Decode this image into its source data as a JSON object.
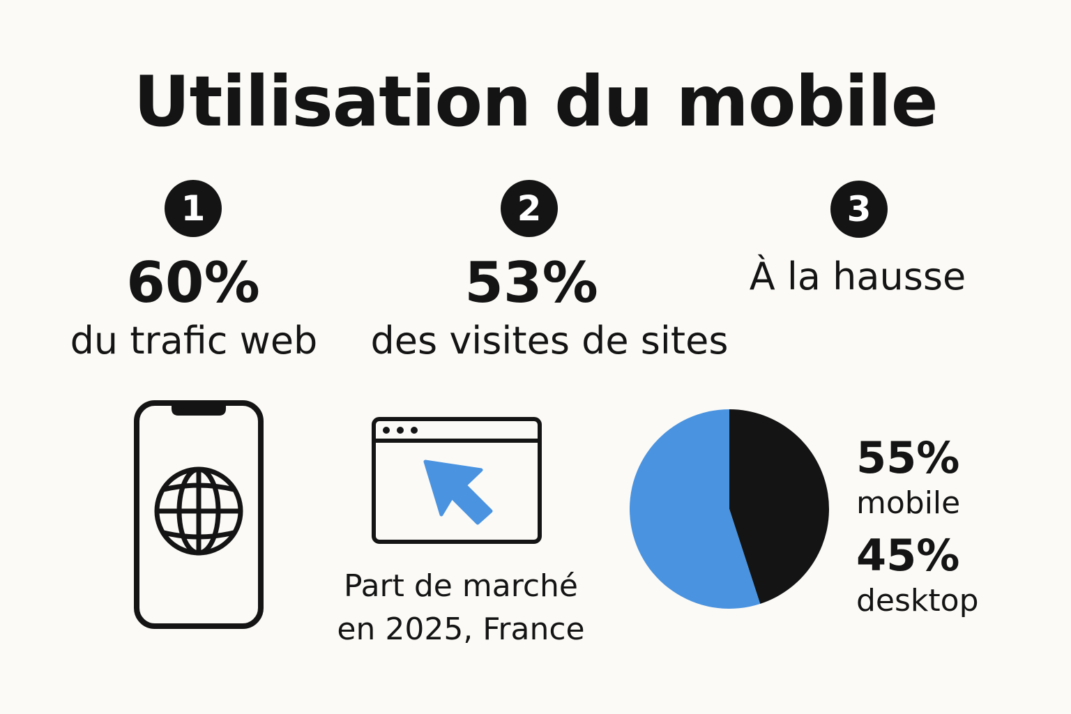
{
  "title": "Utilisation du mobile",
  "stats": [
    {
      "number": "1",
      "value": "60%",
      "caption": "du trafic web"
    },
    {
      "number": "2",
      "value": "53%",
      "caption": "des visites de sites"
    },
    {
      "number": "3",
      "caption": "À la hausse"
    }
  ],
  "icons": {
    "phone": "smartphone-globe-icon",
    "browser": "browser-window-cursor-icon"
  },
  "market": {
    "line1": "Part de marché",
    "line2": "en 2025, France"
  },
  "colors": {
    "background": "#fbfaf6",
    "text": "#141414",
    "accent": "#4a93e0"
  },
  "chart_data": {
    "type": "pie",
    "title": "",
    "slices": [
      {
        "label": "mobile",
        "value": 55,
        "display": "55%",
        "color": "#4a93e0"
      },
      {
        "label": "desktop",
        "value": 45,
        "display": "45%",
        "color": "#141414"
      }
    ]
  }
}
